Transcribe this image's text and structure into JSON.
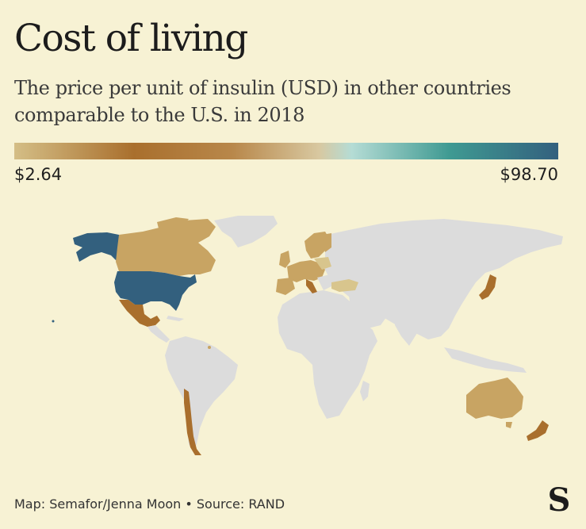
{
  "header": {
    "title": "Cost of living",
    "subtitle": "The price per unit of insulin (USD) in other countries comparable to the U.S. in 2018"
  },
  "legend": {
    "min_label": "$2.64",
    "max_label": "$98.70",
    "min_value": 2.64,
    "max_value": 98.7
  },
  "colors": {
    "background": "#f7f2d4",
    "no_data": "#dcdcdc",
    "us": "#33607e",
    "brown_dark": "#a96f2d",
    "brown_mid": "#c8a463",
    "tan_light": "#d8c58d"
  },
  "map_data": {
    "highlighted_countries": [
      "United States",
      "Canada",
      "Mexico",
      "Chile",
      "Australia",
      "New Zealand",
      "Japan",
      "Turkey",
      "United Kingdom",
      "France",
      "Spain",
      "Portugal",
      "Germany",
      "Italy",
      "Sweden",
      "Norway",
      "Finland",
      "Poland"
    ]
  },
  "footer": {
    "credit": "Map: Semafor/Jenna Moon • Source: RAND",
    "logo_letter": "S"
  }
}
